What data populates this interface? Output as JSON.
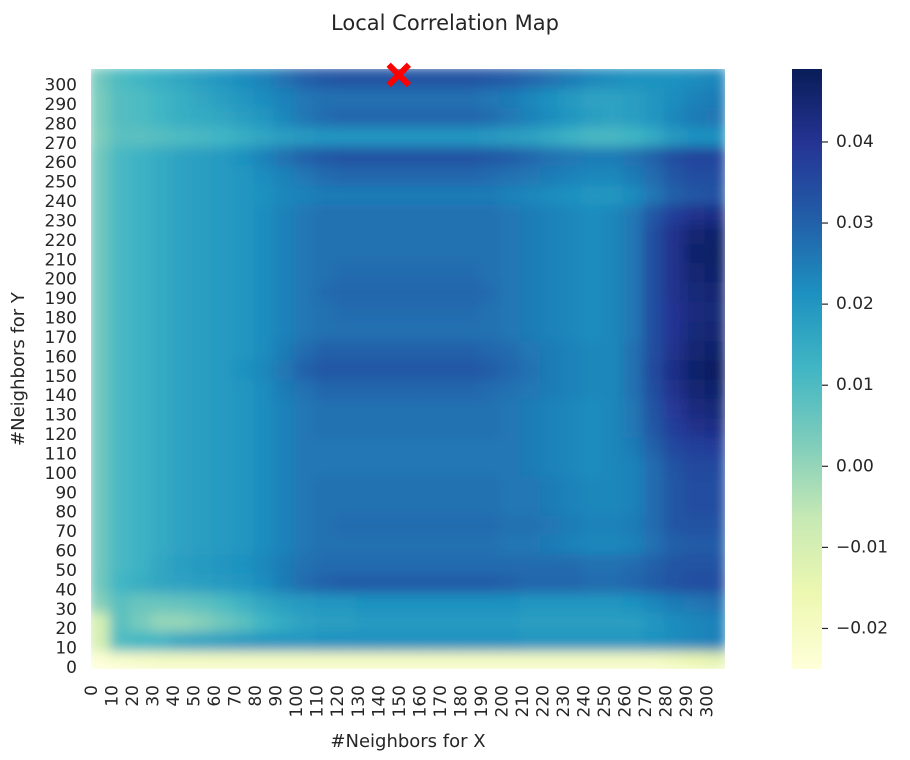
{
  "chart_data": {
    "type": "heatmap",
    "title": "Local Correlation Map",
    "xlabel": "#Neighbors for X",
    "ylabel": "#Neighbors for Y",
    "x_ticks": [
      "0",
      "10",
      "20",
      "30",
      "40",
      "50",
      "60",
      "70",
      "80",
      "90",
      "100",
      "110",
      "120",
      "130",
      "140",
      "150",
      "160",
      "170",
      "180",
      "190",
      "200",
      "210",
      "220",
      "230",
      "240",
      "250",
      "260",
      "270",
      "280",
      "290",
      "300"
    ],
    "y_ticks": [
      "0",
      "10",
      "20",
      "30",
      "40",
      "50",
      "60",
      "70",
      "80",
      "90",
      "100",
      "110",
      "120",
      "130",
      "140",
      "150",
      "160",
      "170",
      "180",
      "190",
      "200",
      "210",
      "220",
      "230",
      "240",
      "250",
      "260",
      "270",
      "280",
      "290",
      "300"
    ],
    "xlim": [
      0,
      309
    ],
    "ylim": [
      0,
      309
    ],
    "colorbar": {
      "min": -0.025,
      "max": 0.049,
      "ticks": [
        "−0.02",
        "−0.01",
        "0.00",
        "0.01",
        "0.02",
        "0.03",
        "0.04"
      ],
      "tick_values": [
        -0.02,
        -0.01,
        0.0,
        0.01,
        0.02,
        0.03,
        0.04
      ],
      "colormap": "YlGnBu"
    },
    "marker": {
      "x": 150,
      "y": 306,
      "symbol": "x",
      "color": "#ff0000"
    },
    "grid": false,
    "legend": "none",
    "grid_step": 10,
    "values": [
      [
        -0.024,
        -0.022,
        -0.021,
        -0.02,
        -0.02,
        -0.02,
        -0.02,
        -0.02,
        -0.02,
        -0.02,
        -0.02,
        -0.02,
        -0.02,
        -0.02,
        -0.02,
        -0.02,
        -0.02,
        -0.02,
        -0.02,
        -0.02,
        -0.02,
        -0.02,
        -0.02,
        -0.02,
        -0.02,
        -0.02,
        -0.02,
        -0.02,
        -0.018,
        -0.016,
        -0.014
      ],
      [
        -0.01,
        0.01,
        0.012,
        0.013,
        0.016,
        0.017,
        0.018,
        0.019,
        0.02,
        0.02,
        0.02,
        0.021,
        0.021,
        0.021,
        0.021,
        0.021,
        0.021,
        0.021,
        0.021,
        0.021,
        0.021,
        0.02,
        0.02,
        0.02,
        0.02,
        0.02,
        0.02,
        0.021,
        0.022,
        0.023,
        0.024
      ],
      [
        -0.01,
        0.008,
        0.004,
        0.0,
        0.0,
        0.002,
        0.005,
        0.008,
        0.012,
        0.015,
        0.017,
        0.018,
        0.018,
        0.019,
        0.019,
        0.019,
        0.019,
        0.019,
        0.019,
        0.019,
        0.019,
        0.018,
        0.018,
        0.018,
        0.018,
        0.018,
        0.018,
        0.02,
        0.022,
        0.023,
        0.024
      ],
      [
        0.002,
        0.008,
        0.006,
        0.006,
        0.007,
        0.008,
        0.01,
        0.013,
        0.016,
        0.018,
        0.019,
        0.02,
        0.02,
        0.021,
        0.021,
        0.021,
        0.021,
        0.021,
        0.021,
        0.021,
        0.021,
        0.02,
        0.02,
        0.02,
        0.02,
        0.02,
        0.021,
        0.023,
        0.025,
        0.026,
        0.027
      ],
      [
        0.005,
        0.012,
        0.014,
        0.016,
        0.017,
        0.018,
        0.019,
        0.02,
        0.022,
        0.025,
        0.028,
        0.03,
        0.031,
        0.031,
        0.031,
        0.031,
        0.031,
        0.031,
        0.031,
        0.031,
        0.03,
        0.029,
        0.029,
        0.029,
        0.028,
        0.028,
        0.029,
        0.031,
        0.033,
        0.034,
        0.034
      ],
      [
        0.005,
        0.011,
        0.013,
        0.016,
        0.018,
        0.019,
        0.02,
        0.021,
        0.023,
        0.025,
        0.027,
        0.028,
        0.028,
        0.028,
        0.028,
        0.028,
        0.028,
        0.028,
        0.028,
        0.028,
        0.028,
        0.028,
        0.028,
        0.028,
        0.027,
        0.027,
        0.028,
        0.03,
        0.032,
        0.033,
        0.033
      ],
      [
        0.005,
        0.011,
        0.013,
        0.015,
        0.017,
        0.018,
        0.019,
        0.02,
        0.022,
        0.024,
        0.026,
        0.027,
        0.027,
        0.027,
        0.027,
        0.027,
        0.027,
        0.027,
        0.027,
        0.027,
        0.026,
        0.026,
        0.025,
        0.024,
        0.023,
        0.023,
        0.024,
        0.027,
        0.03,
        0.031,
        0.031
      ],
      [
        0.005,
        0.011,
        0.013,
        0.015,
        0.017,
        0.018,
        0.019,
        0.02,
        0.022,
        0.024,
        0.026,
        0.027,
        0.028,
        0.028,
        0.028,
        0.028,
        0.028,
        0.028,
        0.028,
        0.028,
        0.027,
        0.027,
        0.026,
        0.025,
        0.024,
        0.024,
        0.025,
        0.028,
        0.032,
        0.033,
        0.033
      ],
      [
        0.005,
        0.011,
        0.013,
        0.015,
        0.017,
        0.018,
        0.019,
        0.02,
        0.022,
        0.024,
        0.026,
        0.027,
        0.027,
        0.027,
        0.027,
        0.027,
        0.027,
        0.027,
        0.027,
        0.027,
        0.026,
        0.026,
        0.025,
        0.024,
        0.023,
        0.023,
        0.024,
        0.028,
        0.032,
        0.034,
        0.034
      ],
      [
        0.005,
        0.011,
        0.013,
        0.015,
        0.017,
        0.018,
        0.019,
        0.02,
        0.022,
        0.024,
        0.026,
        0.027,
        0.027,
        0.027,
        0.027,
        0.027,
        0.027,
        0.027,
        0.027,
        0.027,
        0.026,
        0.026,
        0.025,
        0.024,
        0.023,
        0.023,
        0.024,
        0.028,
        0.032,
        0.034,
        0.034
      ],
      [
        0.005,
        0.011,
        0.013,
        0.015,
        0.017,
        0.018,
        0.019,
        0.02,
        0.022,
        0.024,
        0.026,
        0.026,
        0.026,
        0.026,
        0.026,
        0.026,
        0.026,
        0.026,
        0.026,
        0.026,
        0.026,
        0.025,
        0.024,
        0.023,
        0.022,
        0.023,
        0.024,
        0.028,
        0.033,
        0.035,
        0.035
      ],
      [
        0.005,
        0.011,
        0.013,
        0.015,
        0.017,
        0.018,
        0.019,
        0.02,
        0.022,
        0.024,
        0.026,
        0.026,
        0.026,
        0.026,
        0.026,
        0.026,
        0.026,
        0.026,
        0.026,
        0.026,
        0.026,
        0.025,
        0.024,
        0.023,
        0.022,
        0.023,
        0.025,
        0.03,
        0.035,
        0.037,
        0.038
      ],
      [
        0.005,
        0.011,
        0.013,
        0.015,
        0.017,
        0.018,
        0.019,
        0.02,
        0.022,
        0.024,
        0.026,
        0.027,
        0.027,
        0.027,
        0.027,
        0.027,
        0.027,
        0.027,
        0.027,
        0.027,
        0.026,
        0.025,
        0.024,
        0.023,
        0.022,
        0.023,
        0.026,
        0.032,
        0.038,
        0.041,
        0.042
      ],
      [
        0.005,
        0.011,
        0.013,
        0.015,
        0.017,
        0.018,
        0.019,
        0.02,
        0.022,
        0.024,
        0.026,
        0.027,
        0.027,
        0.027,
        0.027,
        0.027,
        0.027,
        0.027,
        0.027,
        0.027,
        0.026,
        0.025,
        0.024,
        0.023,
        0.022,
        0.023,
        0.026,
        0.033,
        0.039,
        0.043,
        0.044
      ],
      [
        0.005,
        0.011,
        0.013,
        0.015,
        0.017,
        0.018,
        0.019,
        0.02,
        0.022,
        0.025,
        0.027,
        0.029,
        0.029,
        0.029,
        0.029,
        0.029,
        0.029,
        0.029,
        0.029,
        0.028,
        0.027,
        0.026,
        0.025,
        0.024,
        0.023,
        0.023,
        0.027,
        0.034,
        0.041,
        0.045,
        0.046
      ],
      [
        0.005,
        0.011,
        0.013,
        0.015,
        0.017,
        0.018,
        0.019,
        0.021,
        0.023,
        0.026,
        0.03,
        0.032,
        0.032,
        0.032,
        0.032,
        0.032,
        0.032,
        0.032,
        0.032,
        0.031,
        0.029,
        0.027,
        0.025,
        0.024,
        0.023,
        0.023,
        0.027,
        0.035,
        0.042,
        0.046,
        0.048
      ],
      [
        0.005,
        0.011,
        0.013,
        0.015,
        0.017,
        0.018,
        0.019,
        0.02,
        0.022,
        0.025,
        0.028,
        0.03,
        0.03,
        0.03,
        0.03,
        0.03,
        0.03,
        0.03,
        0.03,
        0.029,
        0.028,
        0.026,
        0.025,
        0.024,
        0.023,
        0.023,
        0.027,
        0.034,
        0.041,
        0.045,
        0.046
      ],
      [
        0.005,
        0.011,
        0.013,
        0.015,
        0.017,
        0.018,
        0.019,
        0.02,
        0.022,
        0.024,
        0.026,
        0.027,
        0.027,
        0.027,
        0.027,
        0.027,
        0.027,
        0.027,
        0.027,
        0.027,
        0.026,
        0.025,
        0.024,
        0.023,
        0.022,
        0.023,
        0.026,
        0.034,
        0.04,
        0.044,
        0.045
      ],
      [
        0.005,
        0.011,
        0.013,
        0.015,
        0.017,
        0.018,
        0.019,
        0.02,
        0.022,
        0.024,
        0.026,
        0.027,
        0.028,
        0.028,
        0.028,
        0.028,
        0.028,
        0.028,
        0.028,
        0.027,
        0.026,
        0.025,
        0.024,
        0.023,
        0.022,
        0.023,
        0.026,
        0.034,
        0.04,
        0.043,
        0.044
      ],
      [
        0.005,
        0.011,
        0.013,
        0.015,
        0.017,
        0.018,
        0.019,
        0.02,
        0.022,
        0.024,
        0.026,
        0.028,
        0.029,
        0.029,
        0.029,
        0.029,
        0.029,
        0.029,
        0.029,
        0.028,
        0.026,
        0.025,
        0.024,
        0.023,
        0.022,
        0.023,
        0.026,
        0.034,
        0.041,
        0.044,
        0.045
      ],
      [
        0.005,
        0.011,
        0.013,
        0.015,
        0.017,
        0.018,
        0.019,
        0.02,
        0.022,
        0.024,
        0.026,
        0.027,
        0.028,
        0.028,
        0.028,
        0.028,
        0.028,
        0.028,
        0.028,
        0.027,
        0.026,
        0.025,
        0.024,
        0.023,
        0.022,
        0.023,
        0.026,
        0.034,
        0.041,
        0.045,
        0.046
      ],
      [
        0.005,
        0.011,
        0.013,
        0.015,
        0.017,
        0.018,
        0.019,
        0.02,
        0.022,
        0.024,
        0.026,
        0.027,
        0.027,
        0.027,
        0.027,
        0.027,
        0.027,
        0.027,
        0.027,
        0.027,
        0.026,
        0.025,
        0.024,
        0.023,
        0.022,
        0.023,
        0.026,
        0.034,
        0.041,
        0.046,
        0.047
      ],
      [
        0.005,
        0.011,
        0.013,
        0.015,
        0.017,
        0.018,
        0.019,
        0.02,
        0.022,
        0.024,
        0.026,
        0.027,
        0.027,
        0.027,
        0.027,
        0.027,
        0.027,
        0.027,
        0.027,
        0.027,
        0.026,
        0.025,
        0.024,
        0.023,
        0.022,
        0.023,
        0.026,
        0.034,
        0.041,
        0.045,
        0.046
      ],
      [
        0.005,
        0.011,
        0.013,
        0.015,
        0.017,
        0.018,
        0.019,
        0.02,
        0.022,
        0.024,
        0.026,
        0.027,
        0.027,
        0.027,
        0.027,
        0.027,
        0.027,
        0.027,
        0.027,
        0.027,
        0.026,
        0.025,
        0.024,
        0.023,
        0.022,
        0.023,
        0.026,
        0.032,
        0.038,
        0.041,
        0.042
      ],
      [
        0.005,
        0.011,
        0.013,
        0.015,
        0.017,
        0.018,
        0.019,
        0.02,
        0.021,
        0.023,
        0.024,
        0.025,
        0.025,
        0.025,
        0.025,
        0.025,
        0.025,
        0.025,
        0.025,
        0.025,
        0.024,
        0.023,
        0.022,
        0.021,
        0.02,
        0.02,
        0.022,
        0.026,
        0.03,
        0.032,
        0.033
      ],
      [
        0.005,
        0.011,
        0.013,
        0.015,
        0.017,
        0.018,
        0.019,
        0.02,
        0.022,
        0.024,
        0.026,
        0.028,
        0.029,
        0.029,
        0.029,
        0.029,
        0.029,
        0.029,
        0.029,
        0.028,
        0.027,
        0.026,
        0.025,
        0.024,
        0.023,
        0.023,
        0.025,
        0.028,
        0.032,
        0.034,
        0.034
      ],
      [
        0.005,
        0.011,
        0.013,
        0.015,
        0.017,
        0.018,
        0.019,
        0.021,
        0.024,
        0.027,
        0.03,
        0.032,
        0.033,
        0.033,
        0.033,
        0.033,
        0.033,
        0.033,
        0.033,
        0.032,
        0.031,
        0.029,
        0.027,
        0.026,
        0.025,
        0.025,
        0.027,
        0.03,
        0.034,
        0.036,
        0.036
      ],
      [
        0.003,
        0.008,
        0.008,
        0.009,
        0.01,
        0.011,
        0.012,
        0.014,
        0.016,
        0.018,
        0.019,
        0.02,
        0.02,
        0.02,
        0.02,
        0.02,
        0.02,
        0.02,
        0.02,
        0.019,
        0.018,
        0.017,
        0.015,
        0.013,
        0.011,
        0.011,
        0.012,
        0.015,
        0.019,
        0.021,
        0.021
      ],
      [
        0.004,
        0.009,
        0.01,
        0.012,
        0.014,
        0.015,
        0.016,
        0.018,
        0.02,
        0.023,
        0.026,
        0.028,
        0.029,
        0.029,
        0.029,
        0.029,
        0.029,
        0.029,
        0.029,
        0.028,
        0.026,
        0.024,
        0.022,
        0.02,
        0.018,
        0.017,
        0.018,
        0.02,
        0.023,
        0.025,
        0.026
      ],
      [
        0.004,
        0.009,
        0.01,
        0.012,
        0.014,
        0.016,
        0.018,
        0.02,
        0.022,
        0.024,
        0.026,
        0.027,
        0.027,
        0.027,
        0.027,
        0.027,
        0.027,
        0.027,
        0.027,
        0.026,
        0.025,
        0.023,
        0.021,
        0.019,
        0.017,
        0.017,
        0.018,
        0.02,
        0.022,
        0.024,
        0.025
      ],
      [
        0.005,
        0.01,
        0.012,
        0.014,
        0.016,
        0.018,
        0.02,
        0.022,
        0.024,
        0.027,
        0.03,
        0.032,
        0.033,
        0.033,
        0.033,
        0.033,
        0.033,
        0.033,
        0.033,
        0.032,
        0.031,
        0.029,
        0.027,
        0.025,
        0.023,
        0.022,
        0.021,
        0.021,
        0.021,
        0.022,
        0.023
      ]
    ]
  }
}
